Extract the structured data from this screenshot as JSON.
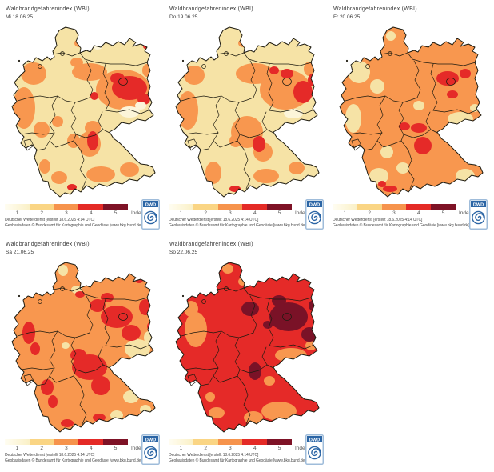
{
  "panel_title": "Waldbrandgefahrenindex (WBI)",
  "attribution": {
    "line1": "Deutscher Wetterdienst [erstellt 18.6.2025 4:14 UTC]",
    "line2": "Geobasisdaten © Bundesamt für Kartographie und Geodäsie [www.bkg.bund.de]"
  },
  "legend": {
    "ticks": [
      "1",
      "2",
      "3",
      "4",
      "5"
    ],
    "label": "Index",
    "colors": [
      "#FAF0C6",
      "#FAD584",
      "#F6934C",
      "#E42A26",
      "#7E1226"
    ],
    "first_segment_gradient_start": "#FFFDF2"
  },
  "logo": {
    "text": "DWD",
    "band_color": "#2B65A5",
    "frame_color": "#9FBCDA",
    "spiral_color": "#2B65A5"
  },
  "map_colors": {
    "cream": "#F6E3A6",
    "light": "#FCF5D9",
    "orange": "#F8974F",
    "red": "#E52A28",
    "maroon": "#7A1227",
    "border": "#1E1B10"
  },
  "panels": [
    {
      "date": "Mi 18.06.25",
      "base": "cream",
      "blobs": [
        {
          "color": "orange",
          "ellipses": [
            [
              38,
              62,
              16,
              14
            ],
            [
              26,
              105,
              14,
              26
            ],
            [
              48,
              132,
              10,
              10
            ],
            [
              108,
              60,
              22,
              11
            ],
            [
              92,
              48,
              8,
              6
            ],
            [
              150,
              82,
              34,
              25
            ],
            [
              112,
              130,
              10,
              9
            ],
            [
              108,
              150,
              14,
              16
            ],
            [
              88,
              146,
              8,
              9
            ],
            [
              68,
              122,
              7,
              7
            ],
            [
              122,
              188,
              18,
              10
            ],
            [
              158,
              182,
              12,
              9
            ],
            [
              70,
              192,
              10,
              8
            ],
            [
              52,
              178,
              7,
              9
            ],
            [
              180,
              58,
              6,
              8
            ],
            [
              95,
              24,
              6,
              5
            ]
          ]
        },
        {
          "color": "red",
          "ellipses": [
            [
              158,
              80,
              22,
              15
            ],
            [
              143,
              68,
              9,
              7
            ],
            [
              176,
              94,
              8,
              7
            ],
            [
              114,
              90,
              5,
              5
            ],
            [
              112,
              146,
              7,
              12
            ],
            [
              86,
              204,
              6,
              4
            ],
            [
              168,
              20,
              4,
              3
            ],
            [
              178,
              28,
              3,
              3
            ]
          ]
        },
        {
          "color": "light",
          "ellipses": [
            [
              158,
              110,
              13,
              7
            ],
            [
              172,
              102,
              7,
              5
            ],
            [
              118,
              28,
              6,
              4
            ]
          ]
        }
      ]
    },
    {
      "date": "Do 19.06.25",
      "base": "cream",
      "blobs": [
        {
          "color": "orange",
          "ellipses": [
            [
              34,
              64,
              13,
              12
            ],
            [
              26,
              108,
              13,
              24
            ],
            [
              110,
              62,
              24,
              13
            ],
            [
              148,
              82,
              32,
              25
            ],
            [
              100,
              135,
              20,
              20
            ],
            [
              120,
              160,
              12,
              12
            ],
            [
              58,
              186,
              10,
              14
            ],
            [
              86,
              146,
              8,
              8
            ],
            [
              124,
              190,
              16,
              9
            ],
            [
              162,
              180,
              10,
              8
            ],
            [
              178,
              56,
              7,
              9
            ],
            [
              95,
              24,
              6,
              5
            ]
          ]
        },
        {
          "color": "red",
          "ellipses": [
            [
              170,
              85,
              12,
              14
            ],
            [
              182,
              70,
              6,
              8
            ],
            [
              150,
              62,
              8,
              6
            ],
            [
              134,
              58,
              6,
              5
            ],
            [
              115,
              150,
              8,
              10
            ],
            [
              85,
              206,
              7,
              4
            ],
            [
              172,
              22,
              4,
              3
            ]
          ]
        },
        {
          "color": "light",
          "ellipses": [
            [
              158,
              112,
              12,
              6
            ]
          ]
        }
      ]
    },
    {
      "date": "Fr 20.06.25",
      "base": "orange",
      "blobs": [
        {
          "color": "cream",
          "ellipses": [
            [
              35,
              60,
              14,
              14
            ],
            [
              28,
              118,
              10,
              18
            ],
            [
              58,
              78,
              9,
              9
            ],
            [
              75,
              15,
              6,
              6
            ],
            [
              162,
              118,
              16,
              8
            ],
            [
              180,
              105,
              6,
              5
            ],
            [
              70,
              160,
              8,
              8
            ],
            [
              60,
              190,
              12,
              10
            ],
            [
              90,
              180,
              8,
              7
            ],
            [
              168,
              190,
              12,
              9
            ],
            [
              178,
              160,
              8,
              7
            ],
            [
              110,
              102,
              7,
              6
            ]
          ]
        },
        {
          "color": "red",
          "ellipses": [
            [
              146,
              68,
              14,
              9
            ],
            [
              168,
              62,
              7,
              6
            ],
            [
              152,
              88,
              7,
              5
            ],
            [
              110,
              130,
              10,
              6
            ],
            [
              92,
              128,
              7,
              5
            ],
            [
              115,
              152,
              11,
              11
            ],
            [
              74,
              206,
              9,
              4
            ],
            [
              64,
              200,
              5,
              4
            ]
          ]
        }
      ]
    },
    {
      "date": "Sa 21.06.25",
      "base": "orange",
      "blobs": [
        {
          "color": "cream",
          "ellipses": [
            [
              75,
              14,
              6,
              7
            ],
            [
              92,
              38,
              7,
              5
            ],
            [
              168,
              112,
              16,
              12
            ],
            [
              182,
              98,
              6,
              8
            ],
            [
              160,
              172,
              10,
              8
            ],
            [
              178,
              188,
              7,
              6
            ],
            [
              142,
              195,
              8,
              6
            ],
            [
              78,
              108,
              5,
              4
            ]
          ]
        },
        {
          "color": "red",
          "ellipses": [
            [
              108,
              135,
              22,
              16
            ],
            [
              122,
              158,
              12,
              12
            ],
            [
              94,
              120,
              10,
              8
            ],
            [
              142,
              72,
              20,
              14
            ],
            [
              160,
              92,
              12,
              10
            ],
            [
              118,
              58,
              10,
              8
            ],
            [
              130,
              48,
              8,
              6
            ],
            [
              178,
              60,
              8,
              10
            ],
            [
              186,
              84,
              6,
              6
            ],
            [
              32,
              92,
              8,
              14
            ],
            [
              40,
              112,
              6,
              8
            ],
            [
              55,
              160,
              8,
              10
            ],
            [
              62,
              178,
              6,
              8
            ],
            [
              80,
              205,
              8,
              5
            ],
            [
              120,
              198,
              8,
              5
            ],
            [
              170,
              26,
              5,
              4
            ],
            [
              96,
              44,
              6,
              4
            ]
          ]
        }
      ]
    },
    {
      "date": "So 22.06.25",
      "base": "red",
      "blobs": [
        {
          "color": "orange",
          "ellipses": [
            [
              36,
              88,
              14,
              22
            ],
            [
              30,
              62,
              9,
              10
            ],
            [
              76,
              12,
              7,
              6
            ],
            [
              94,
              28,
              5,
              5
            ],
            [
              155,
              120,
              20,
              9
            ],
            [
              180,
              108,
              7,
              6
            ],
            [
              140,
              190,
              22,
              12
            ],
            [
              108,
              198,
              12,
              8
            ],
            [
              176,
              162,
              9,
              7
            ],
            [
              62,
              192,
              10,
              7
            ],
            [
              54,
              172,
              6,
              6
            ],
            [
              128,
              152,
              7,
              6
            ]
          ]
        },
        {
          "color": "maroon",
          "ellipses": [
            [
              152,
              72,
              24,
              18
            ],
            [
              178,
              94,
              10,
              9
            ],
            [
              140,
              52,
              9,
              7
            ],
            [
              184,
              58,
              7,
              7
            ],
            [
              104,
              62,
              11,
              9
            ],
            [
              110,
              140,
              8,
              11
            ],
            [
              126,
              82,
              6,
              5
            ]
          ]
        }
      ]
    }
  ]
}
